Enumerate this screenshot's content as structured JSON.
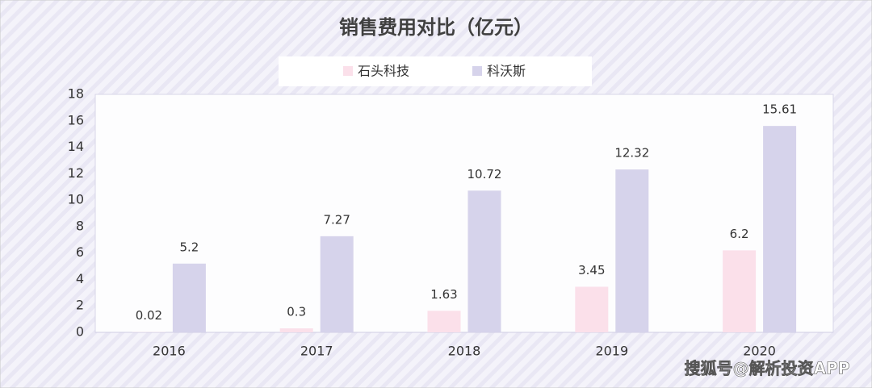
{
  "chart_data": {
    "type": "bar",
    "title": "销售费用对比（亿元）",
    "categories": [
      "2016",
      "2017",
      "2018",
      "2019",
      "2020"
    ],
    "series": [
      {
        "name": "石头科技",
        "color": "#fbe0ea",
        "values": [
          0.02,
          0.3,
          1.63,
          3.45,
          6.2
        ]
      },
      {
        "name": "科沃斯",
        "color": "#d6d3eb",
        "values": [
          5.2,
          7.27,
          10.72,
          12.32,
          15.61
        ]
      }
    ],
    "ylim": [
      0,
      18
    ],
    "yticks": [
      0,
      2,
      4,
      6,
      8,
      10,
      12,
      14,
      16,
      18
    ],
    "grid": false,
    "legend": "top",
    "watermark": "搜狐号@解析投资APP"
  }
}
